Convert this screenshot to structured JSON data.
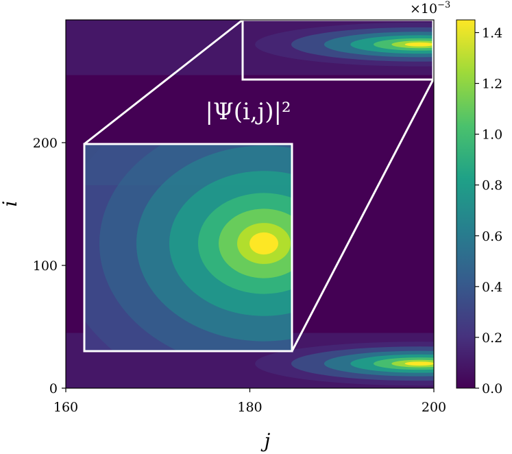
{
  "chart_data": {
    "type": "heatmap",
    "title": "",
    "xlabel": "j",
    "ylabel": "i",
    "xlim": [
      160,
      200
    ],
    "ylim": [
      0,
      300
    ],
    "x_ticks": [
      160,
      180,
      200
    ],
    "y_ticks": [
      0,
      100,
      200
    ],
    "x_tick_labels": [
      "160",
      "180",
      "200"
    ],
    "y_tick_labels": [
      "0",
      "100",
      "200"
    ],
    "colormap": "viridis",
    "colorbar": {
      "range": [
        0.0,
        1.45
      ],
      "ticks": [
        0.0,
        0.2,
        0.4,
        0.6,
        0.8,
        1.0,
        1.2,
        1.4
      ],
      "tick_labels": [
        "0.0",
        "0.2",
        "0.4",
        "0.6",
        "0.8",
        "1.0",
        "1.2",
        "1.4"
      ],
      "scale_prefix": "×10",
      "scale_exponent": "−3"
    },
    "peaks": [
      {
        "j": 198,
        "i": 20,
        "value": 1.3
      },
      {
        "j": 198,
        "i": 280,
        "value": 1.4
      }
    ],
    "zoom_region": {
      "j": [
        179,
        200
      ],
      "i": [
        250,
        300
      ]
    },
    "inset": {
      "title": "|Ψ(i,j)|²",
      "domain_j": [
        162,
        185
      ],
      "domain_i": [
        30,
        200
      ],
      "peak_value": 1.45
    },
    "grid": false
  }
}
